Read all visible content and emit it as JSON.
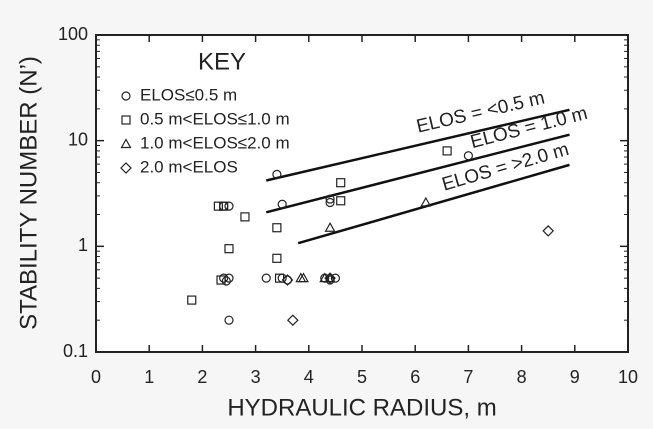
{
  "chart_data": {
    "type": "scatter",
    "xlabel": "HYDRAULIC RADIUS, m",
    "ylabel": "STABILITY NUMBER (N’)",
    "xlim": [
      0,
      10
    ],
    "xticks": [
      0,
      1,
      2,
      3,
      4,
      5,
      6,
      7,
      8,
      9,
      10
    ],
    "ylim": [
      0.1,
      100
    ],
    "yticks": [
      0.1,
      1,
      10,
      100
    ],
    "ylog": true,
    "legend_title": "KEY",
    "series": [
      {
        "name": "ELOS≤0.5 m",
        "marker": "circle",
        "color": "#222222",
        "x": [
          3.4,
          3.5,
          2.4,
          2.5,
          4.4,
          4.4,
          7.0,
          2.4,
          2.5,
          2.45,
          3.2,
          3.5,
          3.6,
          4.3,
          4.4,
          4.5,
          2.5
        ],
        "values": [
          4.8,
          2.5,
          2.4,
          2.4,
          2.8,
          2.6,
          7.2,
          0.5,
          0.5,
          0.47,
          0.5,
          0.5,
          0.48,
          0.5,
          0.48,
          0.5,
          0.2
        ]
      },
      {
        "name": "0.5 m<ELOS≤1.0 m",
        "marker": "square",
        "color": "#222222",
        "x": [
          2.3,
          2.4,
          2.8,
          2.5,
          3.4,
          3.4,
          3.45,
          2.35,
          1.8,
          4.6,
          4.6,
          6.6
        ],
        "values": [
          2.4,
          2.4,
          1.9,
          0.95,
          1.5,
          0.77,
          0.5,
          0.48,
          0.31,
          4.0,
          2.7,
          8.0
        ]
      },
      {
        "name": "1.0 m<ELOS≤2.0 m",
        "marker": "triangle",
        "color": "#222222",
        "x": [
          3.85,
          3.9,
          4.3,
          4.4,
          4.4,
          6.2
        ],
        "values": [
          0.5,
          0.5,
          0.5,
          0.5,
          1.5,
          2.6
        ]
      },
      {
        "name": "2.0 m<ELOS",
        "marker": "diamond",
        "color": "#222222",
        "x": [
          3.6,
          3.7,
          4.4,
          8.5
        ],
        "values": [
          0.48,
          0.2,
          0.5,
          1.4
        ]
      }
    ],
    "lines": [
      {
        "label": "ELOS = <0.5 m",
        "x": [
          3.2,
          8.9
        ],
        "values": [
          4.2,
          19.6
        ]
      },
      {
        "label": "ELOS = 1.0 m",
        "x": [
          3.2,
          8.9
        ],
        "values": [
          2.1,
          11.4
        ]
      },
      {
        "label": "ELOS = >2.0 m",
        "x": [
          3.8,
          8.9
        ],
        "values": [
          1.07,
          5.9
        ]
      }
    ]
  }
}
